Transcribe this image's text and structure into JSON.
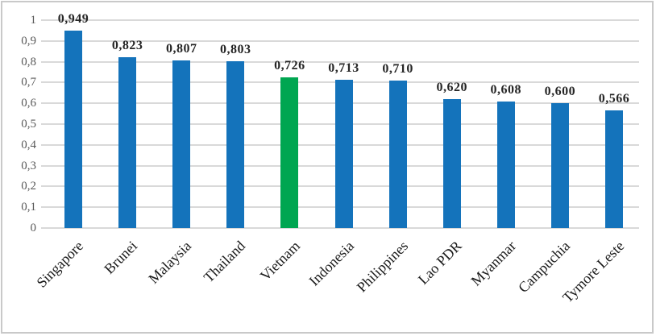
{
  "chart_data": {
    "type": "bar",
    "title": "",
    "xlabel": "",
    "ylabel": "",
    "categories": [
      "Singapore",
      "Brunei",
      "Malaysia",
      "Thailand",
      "Vietnam",
      "Indonesia",
      "Philippines",
      "Lao PDR",
      "Myanmar",
      "Campuchia",
      "Tymore Leste"
    ],
    "values": [
      0.949,
      0.823,
      0.807,
      0.803,
      0.726,
      0.713,
      0.71,
      0.62,
      0.608,
      0.6,
      0.566
    ],
    "value_labels": [
      "0,949",
      "0,823",
      "0,807",
      "0,803",
      "0,726",
      "0,713",
      "0,710",
      "0,620",
      "0,608",
      "0,600",
      "0,566"
    ],
    "highlight_category": "Vietnam",
    "ylim": [
      0,
      1
    ],
    "ytick_values": [
      1,
      0.9,
      0.8,
      0.7,
      0.6,
      0.5,
      0.4,
      0.3,
      0.2,
      0.1,
      0
    ],
    "ytick_labels": [
      "1",
      "0,9",
      "0,8",
      "0,7",
      "0,6",
      "0,5",
      "0,4",
      "0,3",
      "0,2",
      "0,1",
      "0"
    ],
    "decimal_separator": ",",
    "grid": true,
    "legend": "none",
    "colors": {
      "bar": "#1473BB",
      "highlight_bar": "#00A651",
      "gridline": "#D9D9D9",
      "axis_tick_text": "#595959",
      "value_label_text": "#262626",
      "category_text": "#1A1A1A",
      "frame_border": "#C9C9C9",
      "background": "#FFFFFF"
    }
  }
}
